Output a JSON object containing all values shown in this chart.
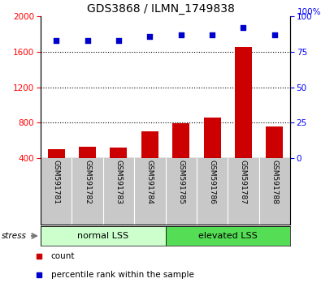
{
  "title": "GDS3868 / ILMN_1749838",
  "categories": [
    "GSM591781",
    "GSM591782",
    "GSM591783",
    "GSM591784",
    "GSM591785",
    "GSM591786",
    "GSM591787",
    "GSM591788"
  ],
  "bar_values": [
    500,
    530,
    520,
    700,
    790,
    860,
    1650,
    760
  ],
  "percentile_values": [
    83,
    83,
    83,
    86,
    87,
    87,
    92,
    87
  ],
  "bar_color": "#cc0000",
  "dot_color": "#0000cc",
  "ylim_left": [
    400,
    2000
  ],
  "ylim_right": [
    0,
    100
  ],
  "yticks_left": [
    400,
    800,
    1200,
    1600,
    2000
  ],
  "yticks_right": [
    0,
    25,
    50,
    75,
    100
  ],
  "grid_values": [
    800,
    1200,
    1600
  ],
  "groups": [
    {
      "label": "normal LSS",
      "start": 0,
      "end": 4,
      "color": "#ccffcc"
    },
    {
      "label": "elevated LSS",
      "start": 4,
      "end": 8,
      "color": "#55dd55"
    }
  ],
  "stress_label": "stress",
  "legend_items": [
    {
      "label": "count",
      "color": "#cc0000",
      "marker": "s"
    },
    {
      "label": "percentile rank within the sample",
      "color": "#0000cc",
      "marker": "s"
    }
  ],
  "xlabel_area_color": "#c8c8c8",
  "arrow_color": "#777777"
}
